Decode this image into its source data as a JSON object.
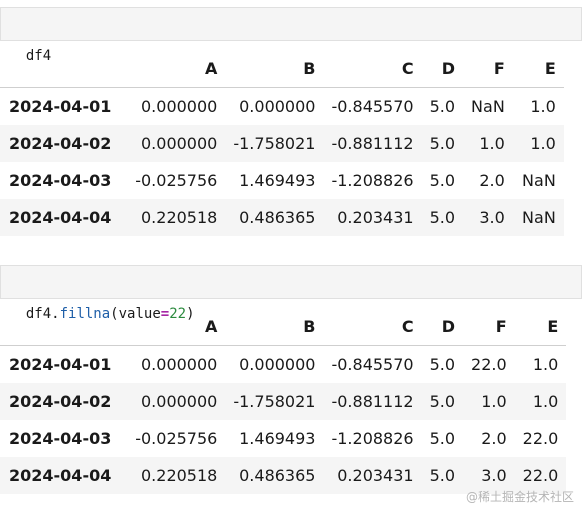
{
  "cells": [
    {
      "code_tokens": [
        {
          "text": "df4",
          "kind": "name"
        }
      ],
      "table": {
        "columns": [
          "",
          "A",
          "B",
          "C",
          "D",
          "F",
          "E"
        ],
        "rows": [
          [
            "2024-04-01",
            "0.000000",
            "0.000000",
            "-0.845570",
            "5.0",
            "NaN",
            "1.0"
          ],
          [
            "2024-04-02",
            "0.000000",
            "-1.758021",
            "-0.881112",
            "5.0",
            "1.0",
            "1.0"
          ],
          [
            "2024-04-03",
            "-0.025756",
            "1.469493",
            "-1.208826",
            "5.0",
            "2.0",
            "NaN"
          ],
          [
            "2024-04-04",
            "0.220518",
            "0.486365",
            "0.203431",
            "5.0",
            "3.0",
            "NaN"
          ]
        ]
      }
    },
    {
      "code_tokens": [
        {
          "text": "df4",
          "kind": "name"
        },
        {
          "text": ".",
          "kind": "punct"
        },
        {
          "text": "fillna",
          "kind": "method"
        },
        {
          "text": "(",
          "kind": "punct"
        },
        {
          "text": "value",
          "kind": "name"
        },
        {
          "text": "=",
          "kind": "op"
        },
        {
          "text": "22",
          "kind": "num"
        },
        {
          "text": ")",
          "kind": "punct"
        }
      ],
      "table": {
        "columns": [
          "",
          "A",
          "B",
          "C",
          "D",
          "F",
          "E"
        ],
        "rows": [
          [
            "2024-04-01",
            "0.000000",
            "0.000000",
            "-0.845570",
            "5.0",
            "22.0",
            "1.0"
          ],
          [
            "2024-04-02",
            "0.000000",
            "-1.758021",
            "-0.881112",
            "5.0",
            "1.0",
            "1.0"
          ],
          [
            "2024-04-03",
            "-0.025756",
            "1.469493",
            "-1.208826",
            "5.0",
            "2.0",
            "22.0"
          ],
          [
            "2024-04-04",
            "0.220518",
            "0.486365",
            "0.203431",
            "5.0",
            "3.0",
            "22.0"
          ]
        ]
      }
    }
  ],
  "watermark": "@稀土掘金技术社区"
}
